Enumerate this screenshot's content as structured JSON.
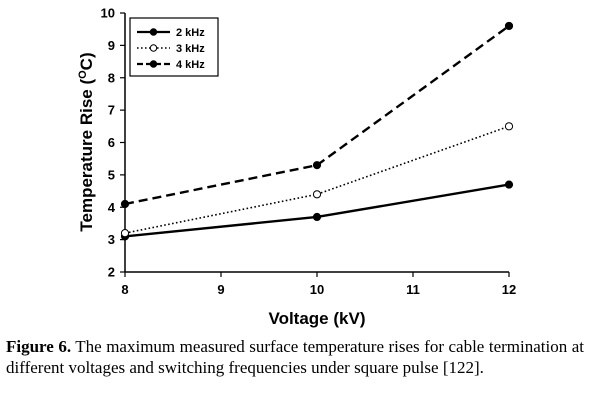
{
  "chart_data": {
    "type": "line",
    "xlabel": "Voltage (kV)",
    "ylabel_main": "Temperature Rise (",
    "ylabel_sup": "O",
    "ylabel_tail": "C)",
    "x": [
      8,
      10,
      12
    ],
    "x_ticks": [
      "8",
      "9",
      "10",
      "11",
      "12"
    ],
    "x_tick_values": [
      8,
      9,
      10,
      11,
      12
    ],
    "xlim": [
      8,
      12
    ],
    "y_ticks": [
      "2",
      "3",
      "4",
      "5",
      "6",
      "7",
      "8",
      "9",
      "10"
    ],
    "y_tick_values": [
      2,
      3,
      4,
      5,
      6,
      7,
      8,
      9,
      10
    ],
    "ylim": [
      2,
      10
    ],
    "grid": false,
    "legend_position": "top-left",
    "series": [
      {
        "name": "2 kHz",
        "values": [
          3.1,
          3.7,
          4.7
        ],
        "line_style": "solid",
        "marker": "filled-circle"
      },
      {
        "name": "3 kHz",
        "values": [
          3.2,
          4.4,
          6.5
        ],
        "line_style": "dotted",
        "marker": "open-circle"
      },
      {
        "name": "4 kHz",
        "values": [
          4.1,
          5.3,
          9.6
        ],
        "line_style": "dashed",
        "marker": "filled-circle"
      }
    ]
  },
  "caption": {
    "label": "Figure 6.",
    "text": " The maximum measured surface temperature rises for cable termination at different voltages and switching frequencies under square pulse [122]."
  }
}
